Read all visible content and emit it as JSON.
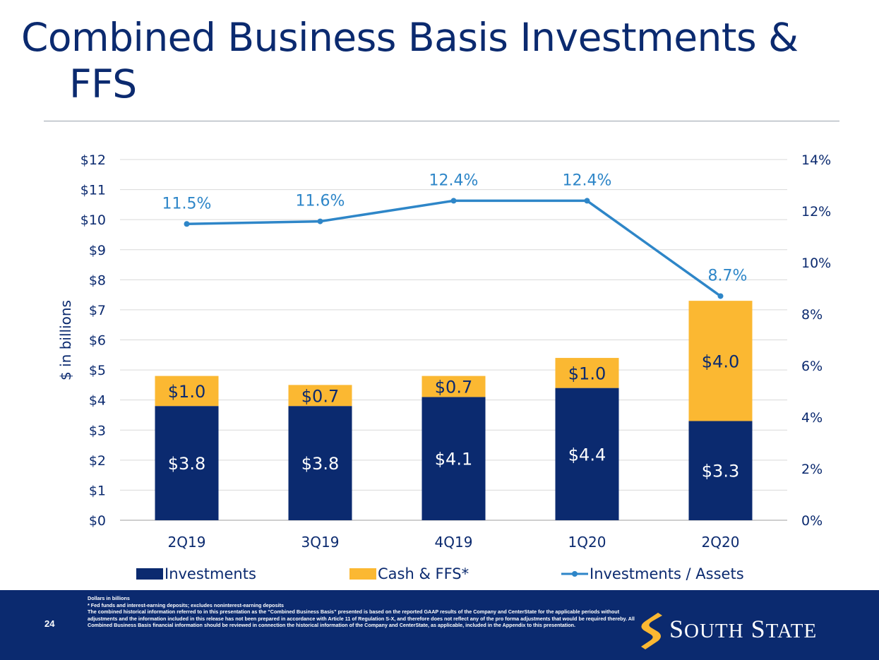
{
  "slide": {
    "title_line1": "Combined Business Basis Investments &",
    "title_line2": "FFS",
    "page_number": "24"
  },
  "footer": {
    "notes": [
      "Dollars in billions",
      "* Fed funds and interest-earning deposits; excludes noninterest-earning deposits",
      "The combined historical information referred to in this presentation as the “Combined Business Basis” presented is based on the reported GAAP results of the Company and CenterState for the applicable periods without adjustments and the information included in this release has not been prepared in accordance with Article 11 of Regulation S-X, and therefore does not reflect any of the pro forma adjustments that would be required thereby.  All Combined Business Basis financial information should be reviewed in connection the historical information of the Company and CenterState, as applicable, included in the Appendix to this presentation."
    ],
    "logo": {
      "word1_initial": "S",
      "word1_rest": "OUTH",
      "word2_initial": "S",
      "word2_rest": "TATE",
      "icon": "dollar-s-logo-icon"
    }
  },
  "chart_data": {
    "type": "bar",
    "stacked": true,
    "categories": [
      "2Q19",
      "3Q19",
      "4Q19",
      "1Q20",
      "2Q20"
    ],
    "series": [
      {
        "name": "Investments",
        "type": "bar",
        "axis": "left",
        "color": "#0b2a6f",
        "values": [
          3.8,
          3.8,
          4.1,
          4.4,
          3.3
        ],
        "labels": [
          "$3.8",
          "$3.8",
          "$4.1",
          "$4.4",
          "$3.3"
        ]
      },
      {
        "name": "Cash & FFS*",
        "type": "bar",
        "axis": "left",
        "color": "#fbb832",
        "values": [
          1.0,
          0.7,
          0.7,
          1.0,
          4.0
        ],
        "labels": [
          "$1.0",
          "$0.7",
          "$0.7",
          "$1.0",
          "$4.0"
        ]
      },
      {
        "name": "Investments / Assets",
        "type": "line",
        "axis": "right",
        "color": "#2e86c8",
        "values": [
          11.5,
          11.6,
          12.4,
          12.4,
          8.7
        ],
        "labels": [
          "11.5%",
          "11.6%",
          "12.4%",
          "12.4%",
          "8.7%"
        ]
      }
    ],
    "ylabel": "$ in billions",
    "ylim": [
      0,
      12
    ],
    "yticks": [
      "$0",
      "$1",
      "$2",
      "$3",
      "$4",
      "$5",
      "$6",
      "$7",
      "$8",
      "$9",
      "$10",
      "$11",
      "$12"
    ],
    "y2lim": [
      0,
      14
    ],
    "y2ticks": [
      "0%",
      "2%",
      "4%",
      "6%",
      "8%",
      "10%",
      "12%",
      "14%"
    ],
    "grid": true,
    "legend": "bottom"
  }
}
